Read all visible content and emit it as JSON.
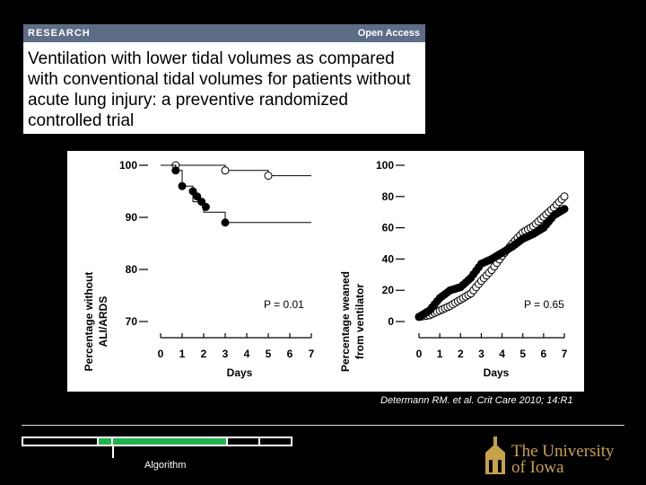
{
  "paper": {
    "section": "RESEARCH",
    "access": "Open Access",
    "title": "Ventilation with lower tidal volumes as compared with conventional tidal volumes for patients without acute lung injury: a preventive randomized controlled trial"
  },
  "figure_panels": {
    "left": {
      "ylabel_line1": "Percentage without",
      "ylabel_line2": "ALI/ARDS",
      "xlabel": "Days",
      "pvalue": "P = 0.01"
    },
    "right": {
      "ylabel_line1": "Percentage weaned",
      "ylabel_line2": "from ventilator",
      "xlabel": "Days",
      "pvalue": "P = 0.65"
    }
  },
  "chart_data": [
    {
      "type": "line",
      "xlabel": "Days",
      "ylabel": "Percentage without ALI/ARDS",
      "xlim": [
        0,
        7
      ],
      "ylim": [
        70,
        100
      ],
      "x_ticks": [
        "0",
        "1",
        "2",
        "3",
        "4",
        "5",
        "6",
        "7"
      ],
      "y_ticks": [
        "70",
        "80",
        "90",
        "100"
      ],
      "annotation": "P = 0.01",
      "series": [
        {
          "marker": "open",
          "x": [
            0,
            0.7,
            3,
            5,
            7
          ],
          "y": [
            100,
            100,
            99,
            98,
            98
          ],
          "points_x": [
            0.7,
            3,
            5
          ],
          "points_y": [
            100,
            99,
            98
          ]
        },
        {
          "marker": "filled",
          "x": [
            0,
            0.7,
            1,
            1.5,
            2,
            3,
            7
          ],
          "y": [
            100,
            99,
            96,
            93,
            91,
            89,
            89
          ],
          "points_x": [
            0.7,
            1,
            1.5,
            1.7,
            1.9,
            2.1,
            3
          ],
          "points_y": [
            99,
            96,
            95,
            94,
            93,
            92,
            89
          ]
        }
      ]
    },
    {
      "type": "line",
      "xlabel": "Days",
      "ylabel": "Percentage weaned from ventilator",
      "xlim": [
        0,
        7
      ],
      "ylim": [
        0,
        100
      ],
      "x_ticks": [
        "0",
        "1",
        "2",
        "3",
        "4",
        "5",
        "6",
        "7"
      ],
      "y_ticks": [
        "0",
        "20",
        "40",
        "60",
        "80",
        "100"
      ],
      "annotation": "P = 0.65",
      "series": [
        {
          "marker": "open",
          "x": [
            0,
            0.5,
            1,
            1.5,
            2,
            2.5,
            3,
            3.5,
            4,
            4.5,
            5,
            5.5,
            6,
            6.5,
            7
          ],
          "y": [
            3,
            4,
            7,
            10,
            14,
            18,
            26,
            33,
            42,
            50,
            57,
            61,
            67,
            73,
            80
          ]
        },
        {
          "marker": "filled",
          "x": [
            0,
            0.5,
            1,
            1.5,
            2,
            2.5,
            3,
            3.5,
            4,
            4.5,
            5,
            5.5,
            6,
            6.5,
            7
          ],
          "y": [
            3,
            7,
            15,
            20,
            22,
            28,
            37,
            40,
            44,
            48,
            53,
            56,
            60,
            68,
            72
          ]
        }
      ]
    }
  ],
  "citation": "Determann RM. et al. Crit Care 2010; 14:R1",
  "timeline": {
    "label": "Algorithm"
  },
  "logo": {
    "line1": "THE UNIVERSITY",
    "line2": "OF IOWA"
  },
  "colors": {
    "background": "#000000",
    "header_bar": "#5d6d86",
    "timeline_active": "#22b14c",
    "logo_gold": "#c8a24a"
  }
}
